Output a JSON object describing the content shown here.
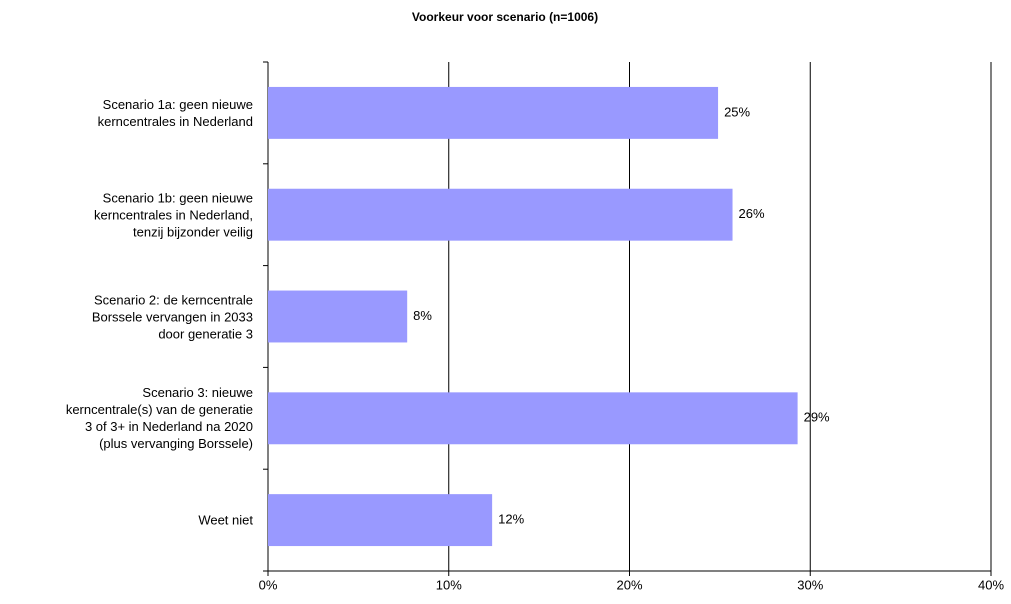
{
  "chart_data": {
    "type": "barh",
    "title": "Voorkeur voor scenario (n=1006)",
    "categories": [
      "Scenario 1a: geen nieuwe\nkerncentrales in Nederland",
      "Scenario 1b: geen nieuwe\nkerncentrales in Nederland,\ntenzij bijzonder veilig",
      "Scenario 2: de kerncentrale\nBorssele vervangen in 2033\ndoor generatie 3",
      "Scenario 3: nieuwe\nkerncentrale(s) van de generatie\n3 of 3+ in Nederland na 2020\n(plus vervanging Borssele)",
      "Weet niet"
    ],
    "values": [
      24.9,
      25.7,
      7.7,
      29.3,
      12.4
    ],
    "value_labels": [
      "25%",
      "26%",
      "8%",
      "29%",
      "12%"
    ],
    "color": "#9999ff",
    "xlim": [
      0,
      40
    ],
    "xticks": [
      {
        "value": 0,
        "label": "0%"
      },
      {
        "value": 10,
        "label": "10%"
      },
      {
        "value": 20,
        "label": "20%"
      },
      {
        "value": 30,
        "label": "30%"
      },
      {
        "value": 40,
        "label": "40%"
      }
    ],
    "grid": true
  }
}
